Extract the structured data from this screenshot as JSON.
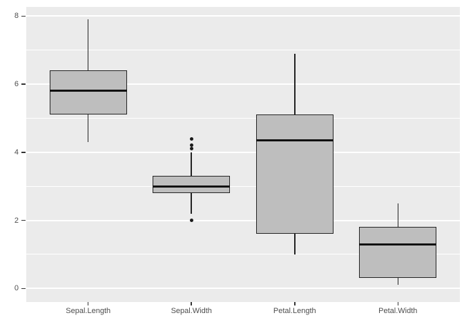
{
  "figure": {
    "background": "#ffffff",
    "kind": "boxplot-figure"
  },
  "chart_data": {
    "type": "boxplot",
    "title": "",
    "xlabel": "",
    "ylabel": "",
    "categories": [
      "Sepal.Length",
      "Sepal.Width",
      "Petal.Length",
      "Petal.Width"
    ],
    "series": [
      {
        "name": "Sepal.Length",
        "whisker_low": 4.3,
        "q1": 5.1,
        "median": 5.8,
        "q3": 6.4,
        "whisker_high": 7.9,
        "outliers": []
      },
      {
        "name": "Sepal.Width",
        "whisker_low": 2.2,
        "q1": 2.8,
        "median": 3.0,
        "q3": 3.3,
        "whisker_high": 4.0,
        "outliers": [
          2.0,
          4.1,
          4.2,
          4.4
        ]
      },
      {
        "name": "Petal.Length",
        "whisker_low": 1.0,
        "q1": 1.6,
        "median": 4.35,
        "q3": 5.1,
        "whisker_high": 6.9,
        "outliers": []
      },
      {
        "name": "Petal.Width",
        "whisker_low": 0.1,
        "q1": 0.3,
        "median": 1.3,
        "q3": 1.8,
        "whisker_high": 2.5,
        "outliers": []
      }
    ],
    "y_ticks": [
      0,
      2,
      4,
      6,
      8
    ],
    "y_minor_ticks": [
      1,
      3,
      5,
      7
    ],
    "ylim": [
      -0.4,
      8.27
    ],
    "grid": true,
    "legend": false,
    "box_width_ratio": 0.75,
    "colors": {
      "panel_bg": "#ebebeb",
      "grid_major": "#ffffff",
      "grid_minor": "#ffffff",
      "box_fill": "#bebebe",
      "box_border": "#222222",
      "median": "#111111",
      "outlier": "#1a1a1a",
      "axis_text": "#4d4d4d",
      "tick_mark": "#333333"
    }
  }
}
